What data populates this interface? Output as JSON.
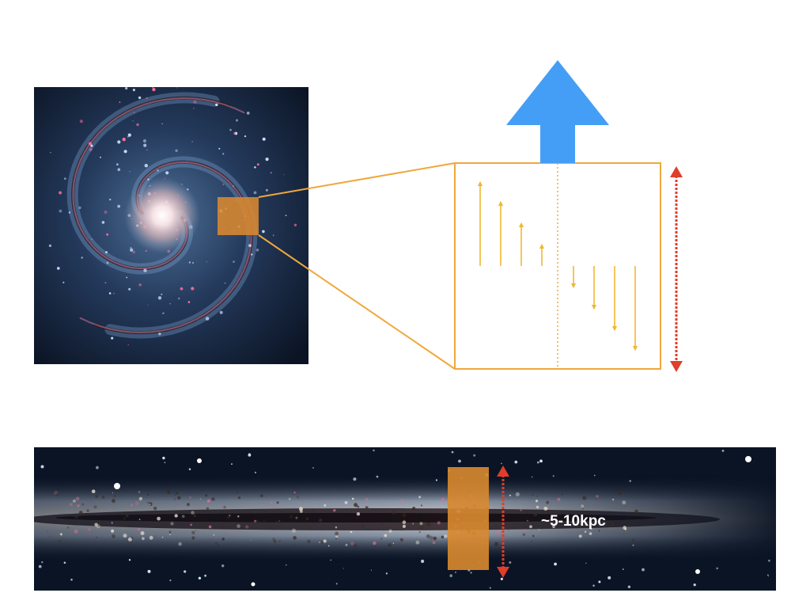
{
  "panels": {
    "face_on": {
      "image": "spiral-galaxy-face-on"
    },
    "edge_on": {
      "image": "spiral-galaxy-edge-on",
      "height_label": "~5-10kpc"
    }
  },
  "zoom": {
    "inner_arrows": [
      {
        "direction": "up",
        "magnitude": 1.0
      },
      {
        "direction": "up",
        "magnitude": 0.76
      },
      {
        "direction": "up",
        "magnitude": 0.5
      },
      {
        "direction": "up",
        "magnitude": 0.24
      },
      {
        "direction": "down",
        "magnitude": 0.24
      },
      {
        "direction": "down",
        "magnitude": 0.5
      },
      {
        "direction": "down",
        "magnitude": 0.76
      },
      {
        "direction": "down",
        "magnitude": 1.0
      }
    ]
  },
  "icons": {
    "outflow": "up-arrow-icon",
    "height": "double-arrow-icon"
  },
  "colors": {
    "highlight": "#D9892F",
    "frame": "#F0A73C",
    "small_arrows": "#F2B731",
    "outflow_arrow": "#459EF5",
    "height_arrow": "#E03D2B",
    "space": "#0B1424"
  }
}
